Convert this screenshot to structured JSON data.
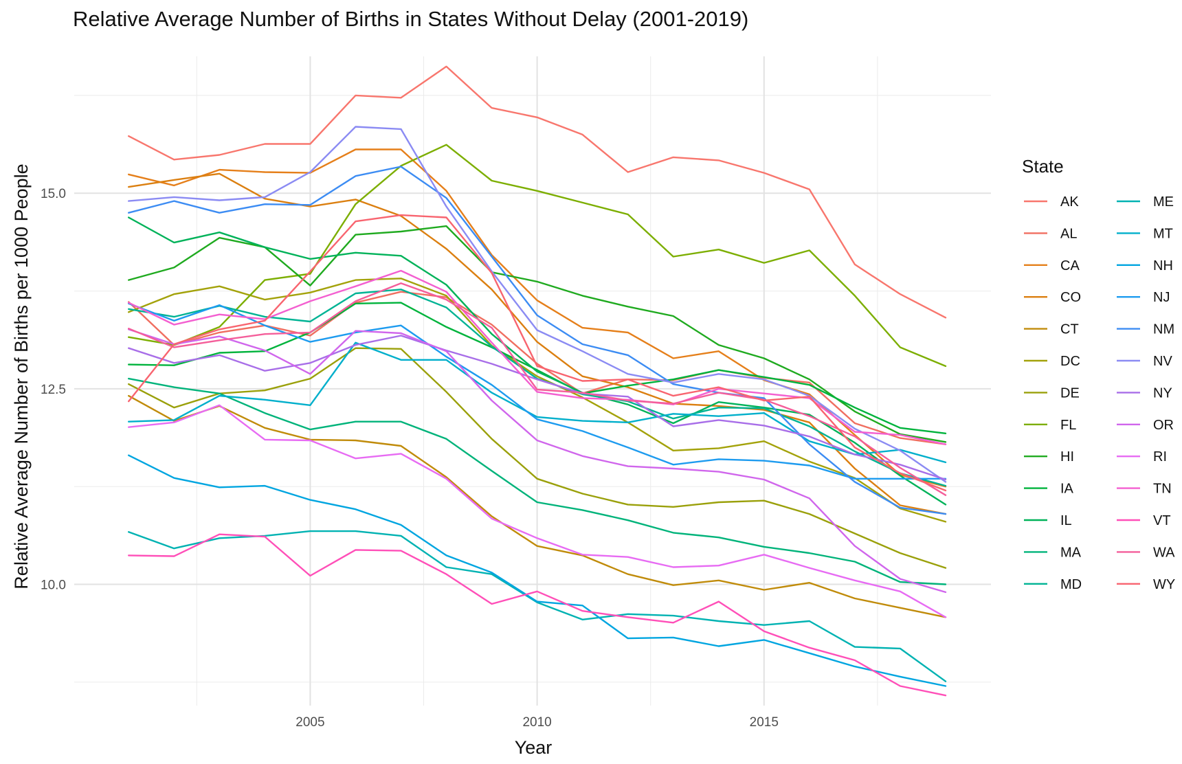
{
  "chart_data": {
    "type": "line",
    "title": "Relative Average Number of Births in States Without Delay (2001-2019)",
    "xlabel": "Year",
    "ylabel": "Relative Average Number of Births per 1000 People",
    "xlim": [
      1999.8,
      2020.0
    ],
    "ylim": [
      8.45,
      16.75
    ],
    "x_ticks": [
      2005,
      2010,
      2015
    ],
    "x_tick_labels": [
      "2005",
      "2010",
      "2015"
    ],
    "x_minor_ticks": [
      2002.5,
      2007.5,
      2012.5,
      2017.5
    ],
    "y_ticks": [
      10.0,
      12.5,
      15.0
    ],
    "y_tick_labels": [
      "10.0",
      "12.5",
      "15.0"
    ],
    "y_minor_ticks": [
      8.75,
      11.25,
      13.75,
      16.25
    ],
    "grid": true,
    "legend_title": "State",
    "legend_position": "right",
    "x": [
      2001,
      2002,
      2003,
      2004,
      2005,
      2006,
      2007,
      2008,
      2009,
      2010,
      2011,
      2012,
      2013,
      2014,
      2015,
      2016,
      2017,
      2018,
      2019
    ],
    "series": [
      {
        "name": "AK",
        "color": "#F8766D",
        "values": [
          15.73,
          15.43,
          15.49,
          15.63,
          15.63,
          16.25,
          16.22,
          16.62,
          16.09,
          15.97,
          15.75,
          15.27,
          15.46,
          15.42,
          15.26,
          15.05,
          14.09,
          13.71,
          13.41
        ]
      },
      {
        "name": "AL",
        "color": "#F06E60",
        "values": [
          13.61,
          13.06,
          13.22,
          13.31,
          13.18,
          13.6,
          13.74,
          13.67,
          13.32,
          12.82,
          12.44,
          12.62,
          12.61,
          12.74,
          12.64,
          12.58,
          12.06,
          11.87,
          11.79
        ]
      },
      {
        "name": "CA",
        "color": "#E57F1A",
        "values": [
          15.24,
          15.1,
          15.3,
          15.27,
          15.26,
          15.56,
          15.56,
          15.03,
          14.21,
          13.63,
          13.28,
          13.22,
          12.89,
          12.98,
          12.61,
          12.43,
          11.91,
          11.4,
          11.25
        ]
      },
      {
        "name": "CO",
        "color": "#DB7F10",
        "values": [
          15.08,
          15.17,
          15.25,
          14.93,
          14.83,
          14.92,
          14.71,
          14.29,
          13.77,
          13.1,
          12.66,
          12.52,
          12.31,
          12.28,
          12.23,
          12.07,
          11.48,
          11.01,
          10.9
        ]
      },
      {
        "name": "CT",
        "color": "#C08B0A",
        "values": [
          12.41,
          12.09,
          12.28,
          12.0,
          11.85,
          11.84,
          11.77,
          11.37,
          10.87,
          10.49,
          10.37,
          10.13,
          9.99,
          10.05,
          9.93,
          10.02,
          9.82,
          9.7,
          9.58
        ]
      },
      {
        "name": "DC",
        "color": "#A3A20A",
        "values": [
          13.48,
          13.71,
          13.81,
          13.64,
          13.73,
          13.89,
          13.91,
          13.69,
          13.05,
          12.66,
          12.39,
          12.07,
          11.71,
          11.74,
          11.83,
          11.57,
          11.36,
          10.97,
          10.8
        ]
      },
      {
        "name": "DE",
        "color": "#9AA00A",
        "values": [
          12.56,
          12.26,
          12.44,
          12.48,
          12.63,
          13.02,
          13.01,
          12.46,
          11.86,
          11.35,
          11.16,
          11.02,
          10.99,
          11.05,
          11.07,
          10.9,
          10.65,
          10.4,
          10.21
        ]
      },
      {
        "name": "FL",
        "color": "#7CAE00",
        "values": [
          13.16,
          13.06,
          13.29,
          13.89,
          13.97,
          14.86,
          15.35,
          15.62,
          15.16,
          15.03,
          14.88,
          14.73,
          14.19,
          14.28,
          14.11,
          14.27,
          13.69,
          13.03,
          12.79
        ]
      },
      {
        "name": "HI",
        "color": "#1FAA1F",
        "values": [
          13.89,
          14.05,
          14.43,
          14.31,
          13.82,
          14.47,
          14.51,
          14.58,
          13.99,
          13.87,
          13.69,
          13.55,
          13.43,
          13.06,
          12.89,
          12.62,
          12.21,
          11.92,
          11.82
        ]
      },
      {
        "name": "IA",
        "color": "#00B33C",
        "values": [
          12.81,
          12.8,
          12.96,
          12.98,
          13.22,
          13.59,
          13.6,
          13.29,
          13.03,
          12.74,
          12.44,
          12.54,
          12.62,
          12.74,
          12.65,
          12.55,
          12.26,
          12.0,
          11.93
        ]
      },
      {
        "name": "IL",
        "color": "#00B259",
        "values": [
          14.69,
          14.37,
          14.5,
          14.31,
          14.16,
          14.24,
          14.2,
          13.83,
          13.2,
          12.72,
          12.45,
          12.3,
          12.06,
          12.33,
          12.26,
          12.17,
          11.81,
          11.39,
          11.02
        ]
      },
      {
        "name": "MA",
        "color": "#00B37A",
        "values": [
          12.63,
          12.52,
          12.44,
          12.19,
          11.98,
          12.08,
          12.08,
          11.86,
          11.45,
          11.05,
          10.95,
          10.82,
          10.66,
          10.6,
          10.48,
          10.4,
          10.29,
          10.03,
          10.0
        ]
      },
      {
        "name": "MD",
        "color": "#00B394",
        "values": [
          13.52,
          13.42,
          13.56,
          13.42,
          13.36,
          13.72,
          13.77,
          13.54,
          13.04,
          12.63,
          12.43,
          12.34,
          12.12,
          12.26,
          12.25,
          12.02,
          11.7,
          11.42,
          11.26
        ]
      },
      {
        "name": "ME",
        "color": "#00B2B2",
        "values": [
          10.67,
          10.46,
          10.59,
          10.62,
          10.68,
          10.68,
          10.62,
          10.22,
          10.13,
          9.77,
          9.55,
          9.62,
          9.6,
          9.53,
          9.48,
          9.53,
          9.2,
          9.18,
          8.76
        ]
      },
      {
        "name": "MT",
        "color": "#00AFCB",
        "values": [
          12.08,
          12.1,
          12.41,
          12.36,
          12.29,
          13.09,
          12.87,
          12.87,
          12.45,
          12.14,
          12.09,
          12.07,
          12.18,
          12.15,
          12.19,
          11.83,
          11.66,
          11.72,
          11.56
        ]
      },
      {
        "name": "NH",
        "color": "#00A5E0",
        "values": [
          11.65,
          11.36,
          11.24,
          11.26,
          11.08,
          10.96,
          10.76,
          10.37,
          10.15,
          9.78,
          9.73,
          9.31,
          9.32,
          9.21,
          9.29,
          9.12,
          8.95,
          8.82,
          8.7
        ]
      },
      {
        "name": "NJ",
        "color": "#1D9BEF",
        "values": [
          13.59,
          13.37,
          13.57,
          13.31,
          13.1,
          13.22,
          13.31,
          12.91,
          12.55,
          12.11,
          11.96,
          11.75,
          11.53,
          11.6,
          11.58,
          11.52,
          11.35,
          11.35,
          11.35
        ]
      },
      {
        "name": "NM",
        "color": "#3C8CF3",
        "values": [
          14.75,
          14.9,
          14.75,
          14.86,
          14.85,
          15.22,
          15.34,
          14.94,
          14.19,
          13.44,
          13.07,
          12.93,
          12.56,
          12.45,
          12.38,
          11.79,
          11.31,
          10.98,
          10.9
        ]
      },
      {
        "name": "NV",
        "color": "#8B8BF3",
        "values": [
          14.9,
          14.95,
          14.91,
          14.95,
          15.27,
          15.85,
          15.82,
          14.83,
          14.0,
          13.25,
          12.98,
          12.69,
          12.58,
          12.69,
          12.62,
          12.41,
          11.99,
          11.71,
          11.31
        ]
      },
      {
        "name": "NY",
        "color": "#A86EE8",
        "values": [
          13.02,
          12.83,
          12.93,
          12.73,
          12.83,
          13.06,
          13.18,
          12.99,
          12.82,
          12.62,
          12.44,
          12.4,
          12.02,
          12.1,
          12.03,
          11.89,
          11.66,
          11.53,
          11.34
        ]
      },
      {
        "name": "OR",
        "color": "#D066EC",
        "values": [
          13.26,
          13.07,
          13.17,
          12.99,
          12.69,
          13.24,
          13.21,
          12.98,
          12.35,
          11.84,
          11.64,
          11.51,
          11.48,
          11.44,
          11.34,
          11.1,
          10.49,
          10.07,
          9.9
        ]
      },
      {
        "name": "RI",
        "color": "#E76BF3",
        "values": [
          12.01,
          12.07,
          12.29,
          11.85,
          11.84,
          11.61,
          11.67,
          11.35,
          10.84,
          10.59,
          10.38,
          10.35,
          10.22,
          10.24,
          10.38,
          10.21,
          10.05,
          9.91,
          9.58
        ]
      },
      {
        "name": "TN",
        "color": "#F35FD0",
        "values": [
          13.6,
          13.32,
          13.45,
          13.39,
          13.62,
          13.81,
          14.01,
          13.74,
          13.09,
          12.46,
          12.38,
          12.36,
          12.3,
          12.5,
          12.44,
          12.38,
          11.95,
          11.91,
          11.79
        ]
      },
      {
        "name": "VT",
        "color": "#FF4FB8",
        "values": [
          10.37,
          10.36,
          10.64,
          10.61,
          10.11,
          10.44,
          10.43,
          10.13,
          9.75,
          9.91,
          9.66,
          9.58,
          9.51,
          9.78,
          9.4,
          9.19,
          9.03,
          8.7,
          8.58
        ]
      },
      {
        "name": "WA",
        "color": "#F45E9A",
        "values": [
          13.27,
          13.03,
          13.12,
          13.2,
          13.22,
          13.62,
          13.85,
          13.64,
          13.28,
          12.49,
          12.45,
          12.35,
          12.31,
          12.45,
          12.36,
          12.15,
          11.89,
          11.49,
          11.14
        ]
      },
      {
        "name": "WY",
        "color": "#F8646F",
        "values": [
          12.34,
          13.07,
          13.26,
          13.37,
          14.0,
          14.64,
          14.72,
          14.69,
          13.98,
          12.79,
          12.6,
          12.62,
          12.41,
          12.52,
          12.35,
          12.4,
          11.75,
          11.42,
          11.2
        ]
      }
    ]
  }
}
